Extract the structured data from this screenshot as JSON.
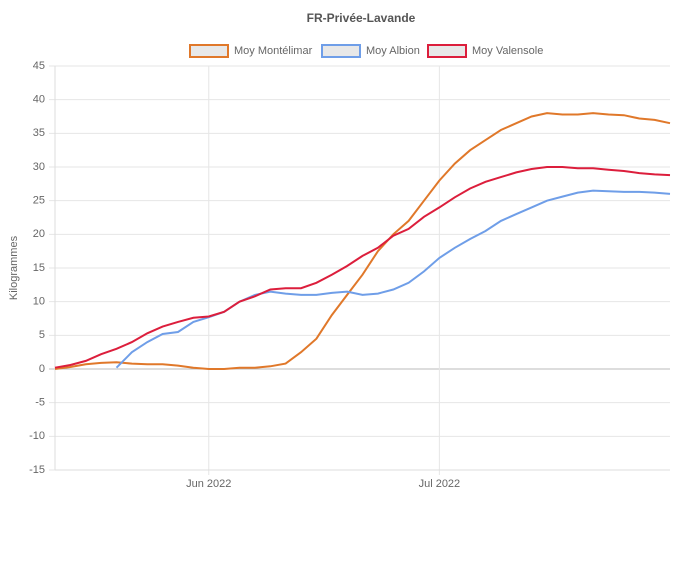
{
  "chart_data": {
    "type": "line",
    "title": "FR-Privée-Lavande",
    "y_label": "Kilogrammes",
    "categories": [
      null,
      null,
      null,
      null,
      null,
      null,
      null,
      null,
      null,
      null,
      "Jun 2022",
      null,
      null,
      null,
      null,
      null,
      null,
      null,
      null,
      null,
      null,
      null,
      null,
      null,
      null,
      "Jul 2022",
      null,
      null,
      null,
      null,
      null,
      null,
      null,
      null,
      null,
      null,
      null,
      null,
      null,
      null,
      null
    ],
    "series": [
      {
        "name": "Moy Montélimar",
        "color": "#e0782a",
        "values": [
          0,
          0.3,
          0.7,
          0.9,
          1.0,
          0.8,
          0.7,
          0.7,
          0.5,
          0.2,
          0,
          0,
          0.2,
          0.2,
          0.4,
          0.8,
          2.5,
          4.5,
          8,
          11,
          14,
          17.5,
          20,
          22,
          25,
          28,
          30.5,
          32.5,
          34,
          35.5,
          36.5,
          37.5,
          38,
          37.8,
          37.8,
          38,
          37.8,
          37.7,
          37.2,
          37,
          36.5
        ]
      },
      {
        "name": "Moy Albion",
        "color": "#6f9ee8",
        "values": [
          null,
          null,
          null,
          null,
          0.2,
          2.5,
          4,
          5.2,
          5.5,
          7,
          7.7,
          8.5,
          10,
          11,
          11.5,
          11.2,
          11,
          11,
          11.3,
          11.5,
          11,
          11.2,
          11.8,
          12.8,
          14.5,
          16.5,
          18,
          19.3,
          20.5,
          22,
          23,
          24,
          25,
          25.6,
          26.2,
          26.5,
          26.4,
          26.3,
          26.3,
          26.2,
          26
        ]
      },
      {
        "name": "Moy Valensole",
        "color": "#dc1e3c",
        "values": [
          0.2,
          0.6,
          1.2,
          2.2,
          3,
          4,
          5.3,
          6.3,
          7,
          7.6,
          7.8,
          8.5,
          10,
          10.8,
          11.8,
          12,
          12,
          12.8,
          14,
          15.3,
          16.8,
          18,
          19.8,
          20.8,
          22.6,
          24,
          25.5,
          26.8,
          27.8,
          28.5,
          29.2,
          29.7,
          30,
          30,
          29.8,
          29.8,
          29.6,
          29.4,
          29.1,
          28.9,
          28.8
        ]
      }
    ],
    "ylim": [
      -15,
      45
    ],
    "yticks": [
      -15,
      -10,
      -5,
      0,
      5,
      10,
      15,
      20,
      25,
      30,
      35,
      40,
      45
    ],
    "grid": true,
    "legend": "top"
  }
}
